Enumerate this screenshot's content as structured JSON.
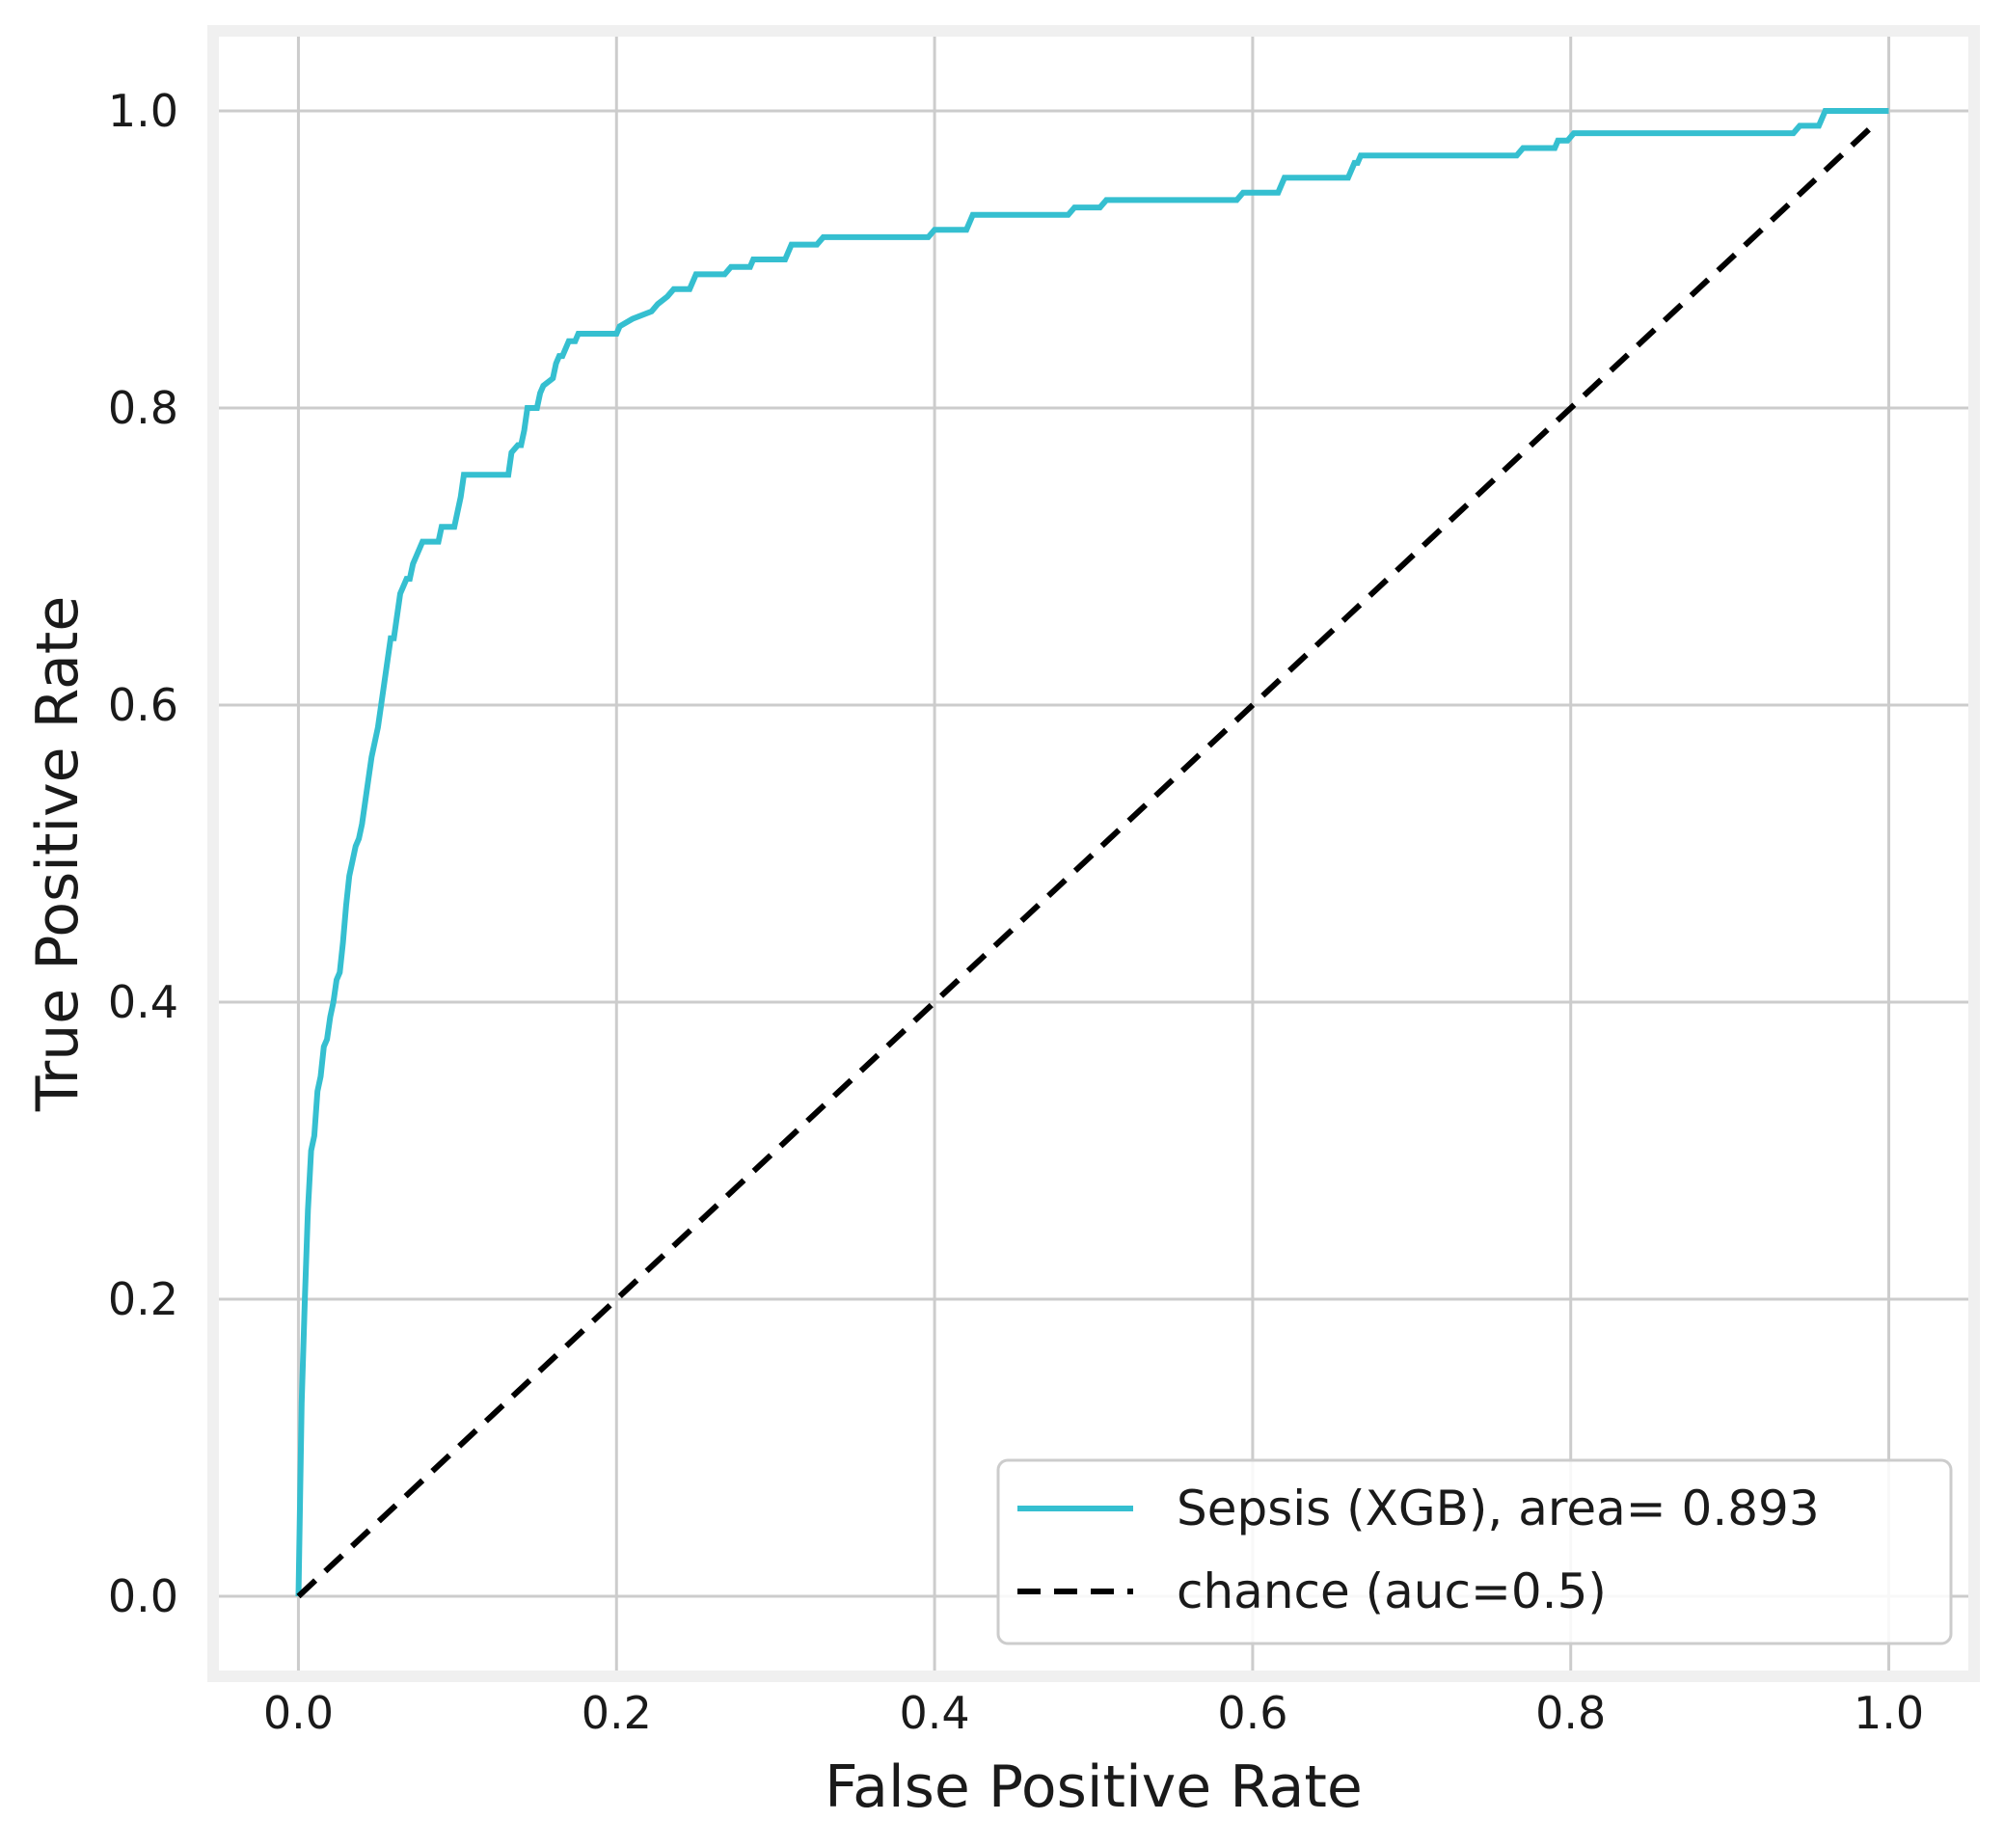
{
  "chart_data": {
    "type": "line",
    "title": "",
    "xlabel": "False Positive Rate",
    "ylabel": "True Positive Rate",
    "xlim": [
      -0.05,
      1.05
    ],
    "ylim": [
      -0.05,
      1.05
    ],
    "x_ticks": [
      0.0,
      0.2,
      0.4,
      0.6,
      0.8,
      1.0
    ],
    "y_ticks": [
      0.0,
      0.2,
      0.4,
      0.6,
      0.8,
      1.0
    ],
    "x_tick_labels": [
      "0.0",
      "0.2",
      "0.4",
      "0.6",
      "0.8",
      "1.0"
    ],
    "y_tick_labels": [
      "0.0",
      "0.2",
      "0.4",
      "0.6",
      "0.8",
      "1.0"
    ],
    "grid": true,
    "legend_position": "bottom-right",
    "series": [
      {
        "name": "Sepsis (XGB), area= 0.893",
        "color": "#35bfd0",
        "style": "solid",
        "x": [
          0.0,
          0.002,
          0.004,
          0.006,
          0.008,
          0.01,
          0.012,
          0.014,
          0.016,
          0.018,
          0.02,
          0.022,
          0.024,
          0.026,
          0.028,
          0.03,
          0.032,
          0.034,
          0.036,
          0.038,
          0.04,
          0.042,
          0.044,
          0.046,
          0.048,
          0.05,
          0.052,
          0.054,
          0.056,
          0.058,
          0.06,
          0.062,
          0.064,
          0.066,
          0.068,
          0.07,
          0.072,
          0.074,
          0.078,
          0.088,
          0.09,
          0.098,
          0.1,
          0.102,
          0.104,
          0.132,
          0.134,
          0.138,
          0.14,
          0.142,
          0.144,
          0.15,
          0.152,
          0.154,
          0.16,
          0.162,
          0.164,
          0.166,
          0.168,
          0.17,
          0.174,
          0.176,
          0.2,
          0.202,
          0.21,
          0.222,
          0.226,
          0.232,
          0.236,
          0.246,
          0.25,
          0.268,
          0.272,
          0.284,
          0.286,
          0.306,
          0.31,
          0.326,
          0.33,
          0.396,
          0.4,
          0.42,
          0.424,
          0.484,
          0.488,
          0.504,
          0.508,
          0.59,
          0.594,
          0.616,
          0.62,
          0.66,
          0.662,
          0.664,
          0.666,
          0.668,
          0.766,
          0.77,
          0.79,
          0.792,
          0.798,
          0.802,
          0.94,
          0.944,
          0.956,
          0.96,
          0.98,
          1.0
        ],
        "y": [
          0.0,
          0.13,
          0.2,
          0.26,
          0.3,
          0.31,
          0.34,
          0.35,
          0.37,
          0.375,
          0.39,
          0.4,
          0.415,
          0.42,
          0.44,
          0.465,
          0.485,
          0.495,
          0.505,
          0.51,
          0.52,
          0.535,
          0.55,
          0.565,
          0.575,
          0.585,
          0.6,
          0.615,
          0.63,
          0.645,
          0.645,
          0.66,
          0.675,
          0.68,
          0.685,
          0.685,
          0.695,
          0.7,
          0.71,
          0.71,
          0.72,
          0.72,
          0.73,
          0.74,
          0.755,
          0.755,
          0.77,
          0.775,
          0.775,
          0.785,
          0.8,
          0.8,
          0.81,
          0.815,
          0.82,
          0.83,
          0.835,
          0.835,
          0.84,
          0.845,
          0.845,
          0.85,
          0.85,
          0.855,
          0.86,
          0.865,
          0.87,
          0.875,
          0.88,
          0.88,
          0.89,
          0.89,
          0.895,
          0.895,
          0.9,
          0.9,
          0.91,
          0.91,
          0.915,
          0.915,
          0.92,
          0.92,
          0.93,
          0.93,
          0.935,
          0.935,
          0.94,
          0.94,
          0.945,
          0.945,
          0.955,
          0.955,
          0.96,
          0.965,
          0.965,
          0.97,
          0.97,
          0.975,
          0.975,
          0.98,
          0.98,
          0.985,
          0.985,
          0.99,
          0.99,
          1.0,
          1.0,
          1.0
        ]
      },
      {
        "name": "chance (auc=0.5)",
        "color": "#000000",
        "style": "dashed",
        "x": [
          0.0,
          0.99
        ],
        "y": [
          0.0,
          0.99
        ]
      }
    ]
  }
}
